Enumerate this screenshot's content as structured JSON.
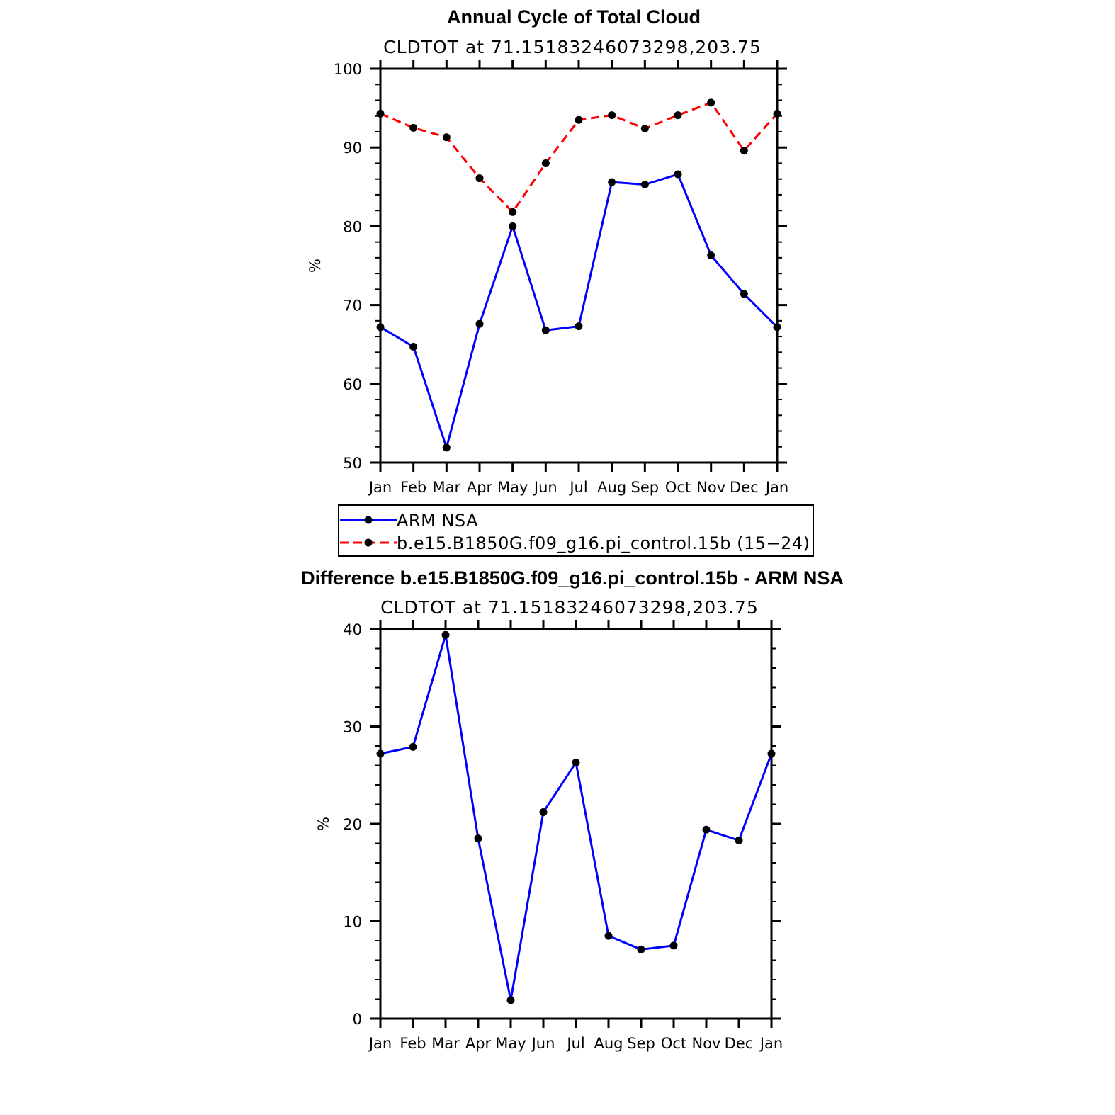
{
  "chart_data": [
    {
      "type": "line",
      "title": "Annual Cycle of Total Cloud",
      "subtitle": "CLDTOT at 71.15183246073298,203.75",
      "xlabel": "",
      "ylabel": "%",
      "categories": [
        "Jan",
        "Feb",
        "Mar",
        "Apr",
        "May",
        "Jun",
        "Jul",
        "Aug",
        "Sep",
        "Oct",
        "Nov",
        "Dec",
        "Jan"
      ],
      "ylim": [
        50,
        100
      ],
      "yticks": [
        50,
        60,
        70,
        80,
        90,
        100
      ],
      "series": [
        {
          "name": "ARM NSA",
          "color": "#0000ff",
          "dash": "solid",
          "values": [
            67.2,
            64.7,
            51.9,
            67.6,
            80.0,
            66.8,
            67.3,
            85.6,
            85.3,
            86.6,
            76.3,
            71.4,
            67.2
          ]
        },
        {
          "name": "b.e15.B1850G.f09_g16.pi_control.15b (15−24)",
          "color": "#ff0000",
          "dash": "dashed",
          "values": [
            94.3,
            92.5,
            91.3,
            86.1,
            81.8,
            88.0,
            93.5,
            94.1,
            92.4,
            94.1,
            95.7,
            89.6,
            94.3
          ]
        }
      ],
      "legend": {
        "position": "below"
      }
    },
    {
      "type": "line",
      "title": "Difference b.e15.B1850G.f09_g16.pi_control.15b - ARM NSA",
      "subtitle": "CLDTOT at 71.15183246073298,203.75",
      "xlabel": "",
      "ylabel": "%",
      "categories": [
        "Jan",
        "Feb",
        "Mar",
        "Apr",
        "May",
        "Jun",
        "Jul",
        "Aug",
        "Sep",
        "Oct",
        "Nov",
        "Dec",
        "Jan"
      ],
      "ylim": [
        0,
        40
      ],
      "yticks": [
        0,
        10,
        20,
        30,
        40
      ],
      "series": [
        {
          "name": "Difference",
          "color": "#0000ff",
          "dash": "solid",
          "values": [
            27.2,
            27.9,
            39.4,
            18.5,
            1.9,
            21.2,
            26.3,
            8.5,
            7.1,
            7.5,
            19.4,
            18.3,
            27.2
          ]
        }
      ]
    }
  ]
}
